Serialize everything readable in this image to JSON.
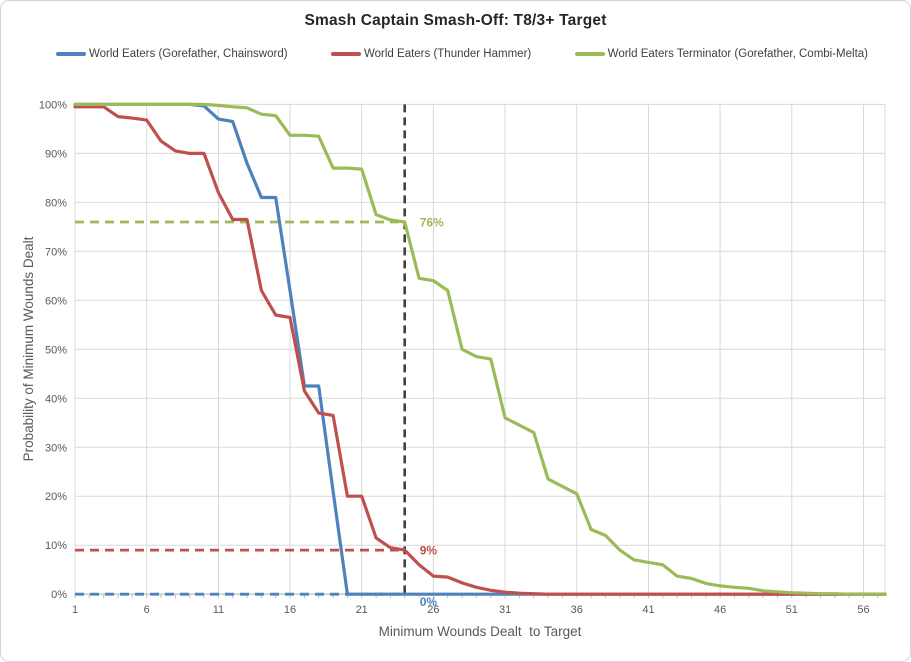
{
  "chart_data": {
    "type": "line",
    "title": "Smash Captain Smash-Off: T8/3+ Target",
    "xlabel": "Minimum Wounds Dealt  to Target",
    "ylabel": "Probability of Minimum Wounds Dealt",
    "x_range": [
      1,
      57.5
    ],
    "y_range": [
      0,
      100
    ],
    "x_ticks": [
      1,
      6,
      11,
      16,
      21,
      26,
      31,
      36,
      41,
      46,
      51,
      56
    ],
    "y_ticks": [
      "0%",
      "10%",
      "20%",
      "30%",
      "40%",
      "50%",
      "60%",
      "70%",
      "80%",
      "90%",
      "100%"
    ],
    "grid": true,
    "grid_color": "#D9D9D9",
    "axis_color": "#BFBFBF",
    "tick_label_color": "#595959",
    "legend_position": "top",
    "x_start": 1,
    "series": [
      {
        "name": "World Eaters (Gorefather, Chainsword)",
        "color": "#4F81BD",
        "values": [
          100,
          100,
          100,
          100,
          100,
          100,
          100,
          100,
          100,
          99.7,
          97,
          96.5,
          88,
          81,
          81,
          62,
          42.5,
          42.5,
          21,
          0,
          0,
          0,
          0,
          0,
          0,
          0,
          0,
          0,
          0,
          0,
          0,
          0,
          0,
          0,
          0,
          0,
          0,
          0,
          0,
          0,
          0,
          0,
          0,
          0,
          0,
          0,
          0,
          0,
          0,
          0,
          0,
          0,
          0,
          0,
          0,
          0,
          0
        ]
      },
      {
        "name": "World Eaters (Thunder Hammer)",
        "color": "#C0504D",
        "values": [
          99.5,
          99.5,
          99.5,
          97.5,
          97.2,
          96.8,
          92.5,
          90.5,
          90,
          90,
          82,
          76.5,
          76.5,
          62,
          57,
          56.5,
          41.5,
          37,
          36.5,
          20,
          20,
          11.5,
          9.5,
          9,
          6,
          3.7,
          3.5,
          2.3,
          1.4,
          0.8,
          0.4,
          0.2,
          0.1,
          0,
          0,
          0,
          0,
          0,
          0,
          0,
          0,
          0,
          0,
          0,
          0,
          0,
          0,
          0,
          0,
          0,
          0,
          0,
          0,
          0,
          0,
          0,
          0
        ]
      },
      {
        "name": "World Eaters Terminator (Gorefather, Combi-Melta)",
        "color": "#9BBB59",
        "values": [
          100,
          100,
          100,
          100,
          100,
          100,
          100,
          100,
          100,
          100,
          99.8,
          99.5,
          99.3,
          98,
          97.7,
          93.7,
          93.7,
          93.5,
          87,
          87,
          86.8,
          77.5,
          76.4,
          76,
          64.5,
          64,
          62,
          50,
          48.5,
          48,
          36,
          34.5,
          33,
          23.5,
          22,
          20.5,
          13.2,
          12,
          9,
          7,
          6.5,
          6,
          3.7,
          3.2,
          2.2,
          1.7,
          1.4,
          1.2,
          0.7,
          0.5,
          0.3,
          0.2,
          0.1,
          0.1,
          0,
          0,
          0
        ]
      }
    ],
    "annotations": {
      "vline": {
        "x": 24,
        "color": "#404040"
      },
      "hlines": [
        {
          "y": 76,
          "label": "76%",
          "color": "#9BBB59"
        },
        {
          "y": 9,
          "label": "9%",
          "color": "#C0504D"
        },
        {
          "y": 0,
          "label": "0%",
          "color": "#4F81BD"
        }
      ]
    }
  }
}
